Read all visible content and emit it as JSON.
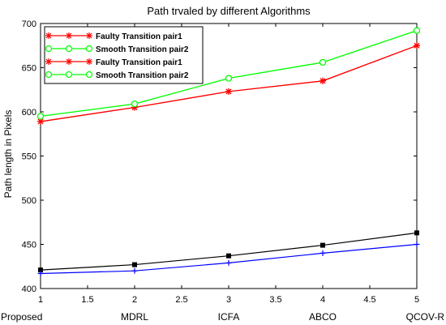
{
  "chart_data": {
    "type": "line",
    "title": "Path trvaled by different Algorithms",
    "xlabel": "",
    "ylabel": "Path length in Pixels",
    "xlim": [
      1,
      5
    ],
    "ylim": [
      400,
      700
    ],
    "x": [
      1,
      2,
      3,
      4,
      5
    ],
    "xticks": [
      "1",
      "1.5",
      "2",
      "2.5",
      "3",
      "3.5",
      "4",
      "4.5",
      "5"
    ],
    "yticks": [
      "400",
      "450",
      "500",
      "550",
      "600",
      "650",
      "700"
    ],
    "categories": [
      "Proposed",
      "MDRL",
      "ICFA",
      "ABCO",
      "QCOV-R"
    ],
    "grid": false,
    "legend_position": "top-left",
    "series": [
      {
        "name": "Faulty Transition pair1",
        "color": "#ff0000",
        "marker": "star",
        "values": [
          589,
          605,
          623,
          635,
          675
        ]
      },
      {
        "name": "Smooth Transition pair2",
        "color": "#00ff00",
        "marker": "circle",
        "values": [
          595,
          609,
          638,
          656,
          692
        ]
      },
      {
        "name": "Faulty Transition pair1",
        "color": "#ff0000",
        "marker": "star",
        "values": [
          589,
          605,
          623,
          635,
          675
        ]
      },
      {
        "name": "Smooth Transition pair2",
        "color": "#00ff00",
        "marker": "circle",
        "values": [
          595,
          609,
          638,
          656,
          692
        ]
      },
      {
        "name": "",
        "color": "#000000",
        "marker": "square",
        "values": [
          421,
          427,
          437,
          449,
          463
        ]
      },
      {
        "name": "",
        "color": "#0000ff",
        "marker": "plus",
        "values": [
          417,
          420,
          429,
          440,
          450
        ]
      }
    ],
    "legend_series": [
      0,
      1,
      2,
      3
    ]
  }
}
